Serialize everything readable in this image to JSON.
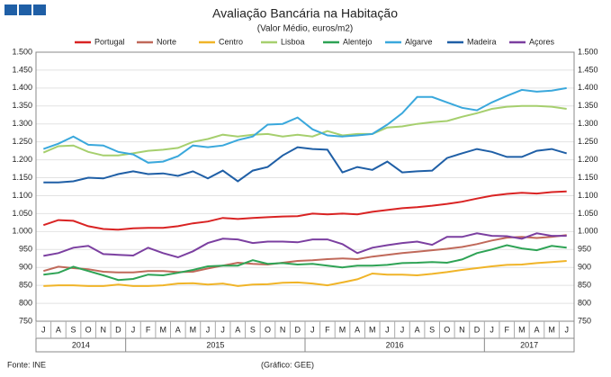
{
  "chart_data": {
    "type": "line",
    "title": "Avaliação Bancária na Habitação",
    "subtitle": "(Valor Médio, euros/m2)",
    "source": "Fonte: INE",
    "credit": "(Gráfico: GEE)",
    "categories": [
      "J",
      "A",
      "S",
      "O",
      "N",
      "D",
      "J",
      "F",
      "M",
      "A",
      "M",
      "J",
      "J",
      "A",
      "S",
      "O",
      "N",
      "D",
      "J",
      "F",
      "M",
      "A",
      "M",
      "J",
      "J",
      "A",
      "S",
      "O",
      "N",
      "D",
      "J",
      "F",
      "M",
      "A",
      "M",
      "J"
    ],
    "years": [
      "2014",
      "2015",
      "2016",
      "2017"
    ],
    "ylim": [
      750,
      1500
    ],
    "yticks": [
      750,
      800,
      850,
      900,
      950,
      {
        "value": 1000,
        "label": "1.000"
      },
      {
        "value": 1050,
        "label": "1.050"
      },
      {
        "value": 1100,
        "label": "1.100"
      },
      {
        "value": 1150,
        "label": "1.150"
      },
      {
        "value": 1200,
        "label": "1.200"
      },
      {
        "value": 1250,
        "label": "1.250"
      },
      {
        "value": 1300,
        "label": "1.300"
      },
      {
        "value": 1350,
        "label": "1.350"
      },
      {
        "value": 1400,
        "label": "1.400"
      },
      {
        "value": 1450,
        "label": "1.450"
      },
      {
        "value": 1500,
        "label": "1.500"
      }
    ],
    "grid": true,
    "series": [
      {
        "name": "Portugal",
        "color": "#d92323",
        "values": [
          1018,
          1032,
          1030,
          1015,
          1007,
          1005,
          1009,
          1010,
          1010,
          1015,
          1023,
          1028,
          1038,
          1035,
          1038,
          1040,
          1042,
          1043,
          1050,
          1048,
          1050,
          1048,
          1055,
          1060,
          1065,
          1068,
          1072,
          1077,
          1083,
          1092,
          1100,
          1105,
          1108,
          1106,
          1110,
          1112
        ]
      },
      {
        "name": "Norte",
        "color": "#c0695a",
        "values": [
          890,
          902,
          898,
          895,
          888,
          886,
          886,
          890,
          890,
          887,
          888,
          897,
          905,
          913,
          910,
          908,
          913,
          918,
          920,
          923,
          925,
          923,
          930,
          935,
          940,
          944,
          948,
          952,
          957,
          965,
          975,
          983,
          985,
          982,
          985,
          990
        ]
      },
      {
        "name": "Centro",
        "color": "#f0b428",
        "values": [
          848,
          850,
          850,
          848,
          848,
          852,
          848,
          848,
          850,
          855,
          856,
          852,
          855,
          848,
          852,
          853,
          857,
          858,
          855,
          850,
          858,
          867,
          883,
          880,
          880,
          878,
          882,
          887,
          893,
          898,
          903,
          907,
          908,
          912,
          915,
          918
        ]
      },
      {
        "name": "Lisboa",
        "color": "#a6cf6e",
        "values": [
          1220,
          1238,
          1240,
          1222,
          1212,
          1212,
          1218,
          1225,
          1228,
          1233,
          1250,
          1258,
          1270,
          1265,
          1270,
          1272,
          1265,
          1270,
          1265,
          1280,
          1268,
          1272,
          1272,
          1290,
          1293,
          1300,
          1305,
          1308,
          1320,
          1330,
          1342,
          1348,
          1350,
          1350,
          1348,
          1342
        ]
      },
      {
        "name": "Alentejo",
        "color": "#2ea355",
        "values": [
          880,
          885,
          902,
          890,
          878,
          865,
          868,
          880,
          878,
          885,
          893,
          903,
          905,
          905,
          920,
          910,
          912,
          908,
          910,
          905,
          900,
          905,
          905,
          907,
          912,
          913,
          915,
          913,
          922,
          940,
          950,
          962,
          953,
          948,
          960,
          955
        ]
      },
      {
        "name": "Algarve",
        "color": "#3aa8dc",
        "values": [
          1230,
          1245,
          1265,
          1242,
          1240,
          1222,
          1215,
          1192,
          1195,
          1210,
          1240,
          1235,
          1240,
          1255,
          1265,
          1298,
          1300,
          1318,
          1285,
          1268,
          1265,
          1268,
          1272,
          1298,
          1330,
          1375,
          1375,
          1360,
          1345,
          1338,
          1360,
          1378,
          1395,
          1390,
          1393,
          1400
        ]
      },
      {
        "name": "Madeira",
        "color": "#1f5fa6",
        "values": [
          1137,
          1137,
          1140,
          1150,
          1148,
          1160,
          1168,
          1160,
          1162,
          1155,
          1168,
          1148,
          1170,
          1140,
          1170,
          1180,
          1212,
          1235,
          1230,
          1228,
          1165,
          1180,
          1172,
          1195,
          1165,
          1168,
          1170,
          1205,
          1218,
          1230,
          1222,
          1208,
          1208,
          1225,
          1230,
          1218
        ]
      },
      {
        "name": "Açores",
        "color": "#7b3fa0",
        "values": [
          932,
          940,
          955,
          960,
          937,
          935,
          933,
          955,
          940,
          928,
          945,
          968,
          980,
          978,
          968,
          972,
          972,
          970,
          978,
          978,
          965,
          940,
          955,
          962,
          968,
          972,
          963,
          985,
          985,
          995,
          988,
          987,
          980,
          995,
          988,
          988
        ]
      }
    ]
  }
}
